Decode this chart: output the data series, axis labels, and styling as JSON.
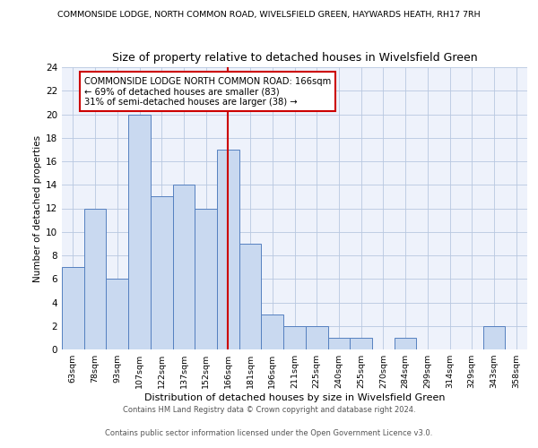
{
  "title": "Size of property relative to detached houses in Wivelsfield Green",
  "suptitle": "COMMONSIDE LODGE, NORTH COMMON ROAD, WIVELSFIELD GREEN, HAYWARDS HEATH, RH17 7RH",
  "xlabel": "Distribution of detached houses by size in Wivelsfield Green",
  "ylabel": "Number of detached properties",
  "bin_labels": [
    "63sqm",
    "78sqm",
    "93sqm",
    "107sqm",
    "122sqm",
    "137sqm",
    "152sqm",
    "166sqm",
    "181sqm",
    "196sqm",
    "211sqm",
    "225sqm",
    "240sqm",
    "255sqm",
    "270sqm",
    "284sqm",
    "299sqm",
    "314sqm",
    "329sqm",
    "343sqm",
    "358sqm"
  ],
  "bar_heights": [
    7,
    12,
    6,
    20,
    13,
    14,
    12,
    17,
    9,
    3,
    2,
    2,
    1,
    1,
    0,
    1,
    0,
    0,
    0,
    2,
    0
  ],
  "bar_color": "#c9d9f0",
  "bar_edge_color": "#5580c0",
  "marker_index": 7,
  "marker_color": "#cc0000",
  "annotation_title": "COMMONSIDE LODGE NORTH COMMON ROAD: 166sqm",
  "annotation_line1": "← 69% of detached houses are smaller (83)",
  "annotation_line2": "31% of semi-detached houses are larger (38) →",
  "annotation_box_color": "#cc0000",
  "ylim": [
    0,
    24
  ],
  "yticks": [
    0,
    2,
    4,
    6,
    8,
    10,
    12,
    14,
    16,
    18,
    20,
    22,
    24
  ],
  "footer_line1": "Contains HM Land Registry data © Crown copyright and database right 2024.",
  "footer_line2": "Contains public sector information licensed under the Open Government Licence v3.0.",
  "background_color": "#eef2fb",
  "grid_color": "#b8c8e0"
}
